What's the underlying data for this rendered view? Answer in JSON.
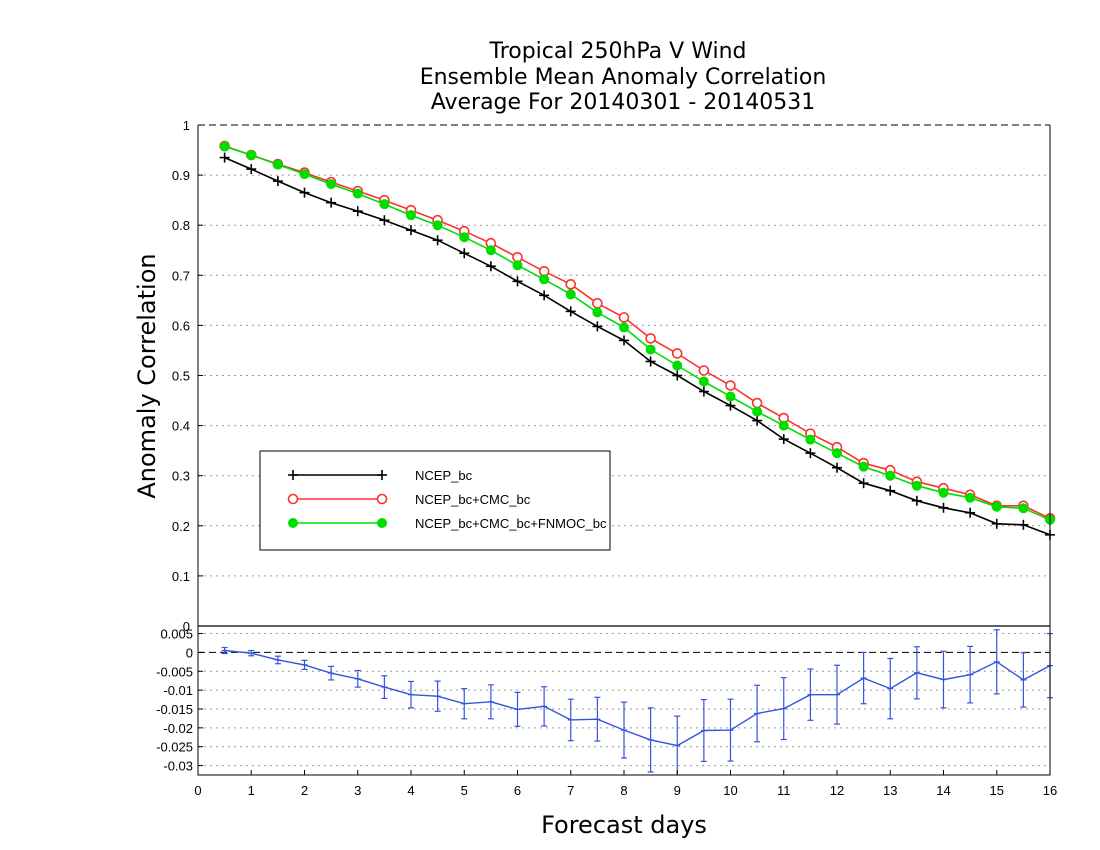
{
  "chart_data": [
    {
      "type": "line",
      "title": [
        "Tropical 250hPa V Wind",
        "Ensemble Mean Anomaly Correlation",
        "Average For 20140301 - 20140531"
      ],
      "ylabel": "Anomaly Correlation",
      "ylim": [
        0,
        1
      ],
      "yticks": [
        "0",
        "0.1",
        "0.2",
        "0.3",
        "0.4",
        "0.5",
        "0.6",
        "0.7",
        "0.8",
        "0.9",
        "1"
      ],
      "grid": true,
      "legend_position": "lower-left",
      "x": [
        0.5,
        1,
        1.5,
        2,
        2.5,
        3,
        3.5,
        4,
        4.5,
        5,
        5.5,
        6,
        6.5,
        7,
        7.5,
        8,
        8.5,
        9,
        9.5,
        10,
        10.5,
        11,
        11.5,
        12,
        12.5,
        13,
        13.5,
        14,
        14.5,
        15,
        15.5,
        16
      ],
      "series": [
        {
          "name": "NCEP_bc",
          "color": "#000000",
          "marker": "plus",
          "values": [
            0.935,
            0.912,
            0.888,
            0.865,
            0.845,
            0.828,
            0.81,
            0.79,
            0.77,
            0.744,
            0.718,
            0.688,
            0.66,
            0.628,
            0.598,
            0.57,
            0.528,
            0.5,
            0.468,
            0.44,
            0.41,
            0.373,
            0.345,
            0.316,
            0.285,
            0.27,
            0.25,
            0.236,
            0.226,
            0.204,
            0.202,
            0.182
          ]
        },
        {
          "name": "NCEP_bc+CMC_bc",
          "color": "#ff3030",
          "marker": "open-circle",
          "values": [
            0.958,
            0.94,
            0.922,
            0.905,
            0.886,
            0.868,
            0.85,
            0.83,
            0.81,
            0.788,
            0.764,
            0.736,
            0.708,
            0.682,
            0.644,
            0.616,
            0.574,
            0.544,
            0.51,
            0.48,
            0.445,
            0.415,
            0.384,
            0.357,
            0.325,
            0.311,
            0.288,
            0.275,
            0.262,
            0.24,
            0.24,
            0.215
          ]
        },
        {
          "name": "NCEP_bc+CMC_bc+FNMOC_bc",
          "color": "#00dd00",
          "marker": "filled-circle",
          "values": [
            0.957,
            0.94,
            0.921,
            0.902,
            0.882,
            0.863,
            0.842,
            0.82,
            0.8,
            0.776,
            0.75,
            0.72,
            0.692,
            0.662,
            0.626,
            0.596,
            0.552,
            0.52,
            0.488,
            0.458,
            0.428,
            0.4,
            0.372,
            0.345,
            0.318,
            0.3,
            0.28,
            0.266,
            0.256,
            0.238,
            0.235,
            0.212
          ]
        }
      ]
    },
    {
      "type": "line",
      "xlabel": "Forecast days",
      "xlim": [
        0,
        16
      ],
      "xticks": [
        "0",
        "1",
        "2",
        "3",
        "4",
        "5",
        "6",
        "7",
        "8",
        "9",
        "10",
        "11",
        "12",
        "13",
        "14",
        "15",
        "16"
      ],
      "ylim": [
        -0.0325,
        0.007
      ],
      "yticks": [
        "0.005",
        "0",
        "-0.005",
        "-0.01",
        "-0.015",
        "-0.02",
        "-0.025",
        "-0.03"
      ],
      "reference_line": 0,
      "grid": true,
      "x": [
        0.5,
        1,
        1.5,
        2,
        2.5,
        3,
        3.5,
        4,
        4.5,
        5,
        5.5,
        6,
        6.5,
        7,
        7.5,
        8,
        8.5,
        9,
        9.5,
        10,
        10.5,
        11,
        11.5,
        12,
        12.5,
        13,
        13.5,
        14,
        14.5,
        15,
        15.5,
        16
      ],
      "series": [
        {
          "name": "",
          "color": "#3355dd",
          "marker": "plus",
          "error_bars": true,
          "values": [
            0.0005,
            -0.0002,
            -0.002,
            -0.0033,
            -0.0055,
            -0.007,
            -0.0092,
            -0.0112,
            -0.0116,
            -0.0136,
            -0.0131,
            -0.0151,
            -0.0143,
            -0.0179,
            -0.0177,
            -0.0206,
            -0.0232,
            -0.0247,
            -0.0207,
            -0.0206,
            -0.0162,
            -0.0149,
            -0.0112,
            -0.0112,
            -0.0068,
            -0.0096,
            -0.0054,
            -0.0072,
            -0.0059,
            -0.0025,
            -0.0073,
            -0.0035
          ],
          "errors": [
            0.0008,
            0.0007,
            0.001,
            0.0012,
            0.0018,
            0.0022,
            0.003,
            0.0035,
            0.004,
            0.004,
            0.0045,
            0.0045,
            0.0052,
            0.0055,
            0.0058,
            0.0074,
            0.0085,
            0.0078,
            0.0082,
            0.0082,
            0.0075,
            0.0082,
            0.0068,
            0.0078,
            0.0068,
            0.008,
            0.0069,
            0.0075,
            0.0075,
            0.0085,
            0.0072,
            0.0085
          ]
        }
      ]
    }
  ]
}
